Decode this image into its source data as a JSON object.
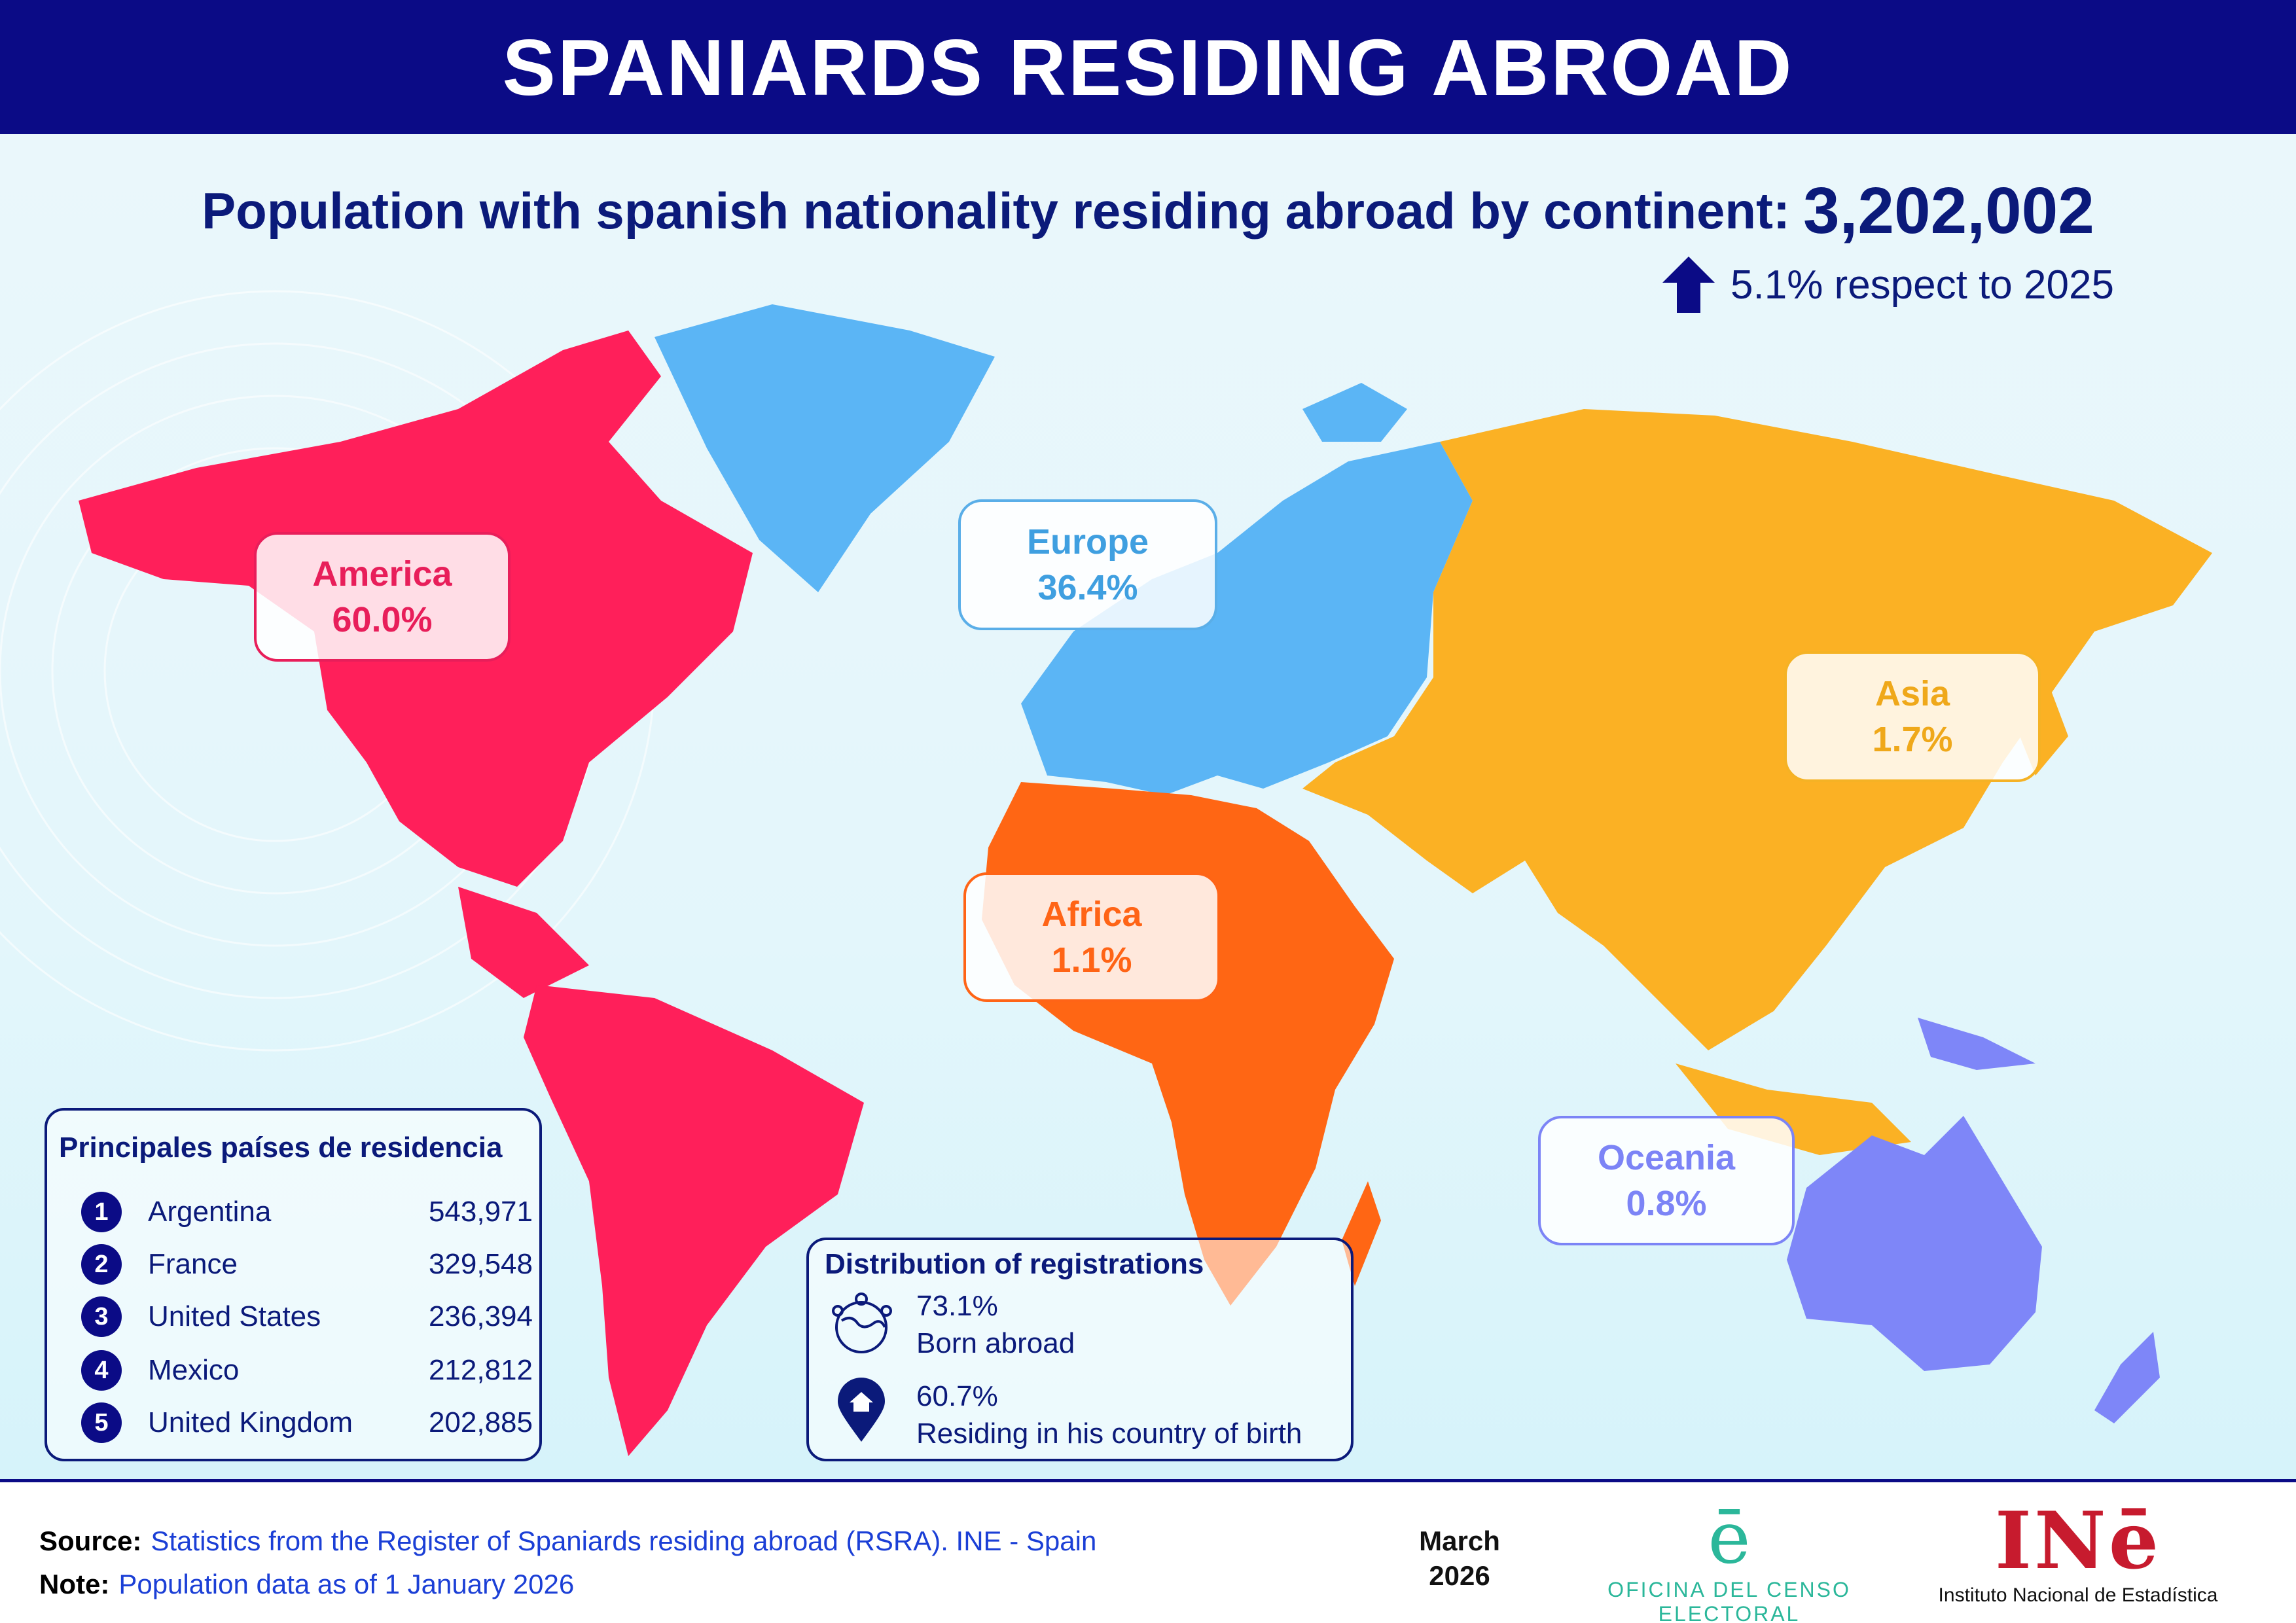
{
  "header": {
    "title": "SPANIARDS RESIDING ABROAD"
  },
  "summary": {
    "subtitle": "Population with spanish nationality residing abroad by continent:",
    "total": "3,202,002",
    "variation": "5.1% respect to 2025",
    "variation_direction": "up"
  },
  "continents": [
    {
      "name": "America",
      "share": "60.0%",
      "color": "#ff1f5a"
    },
    {
      "name": "Europe",
      "share": "36.4%",
      "color": "#5bb5f5"
    },
    {
      "name": "Asia",
      "share": "1.7%",
      "color": "#fbb124"
    },
    {
      "name": "Africa",
      "share": "1.1%",
      "color": "#ff6614"
    },
    {
      "name": "Oceania",
      "share": "0.8%",
      "color": "#7e86f8"
    }
  ],
  "ranking": {
    "title": "Principales países de residencia",
    "items": [
      {
        "rank": "1",
        "country": "Argentina",
        "value": "543,971"
      },
      {
        "rank": "2",
        "country": "France",
        "value": "329,548"
      },
      {
        "rank": "3",
        "country": "United States",
        "value": "236,394"
      },
      {
        "rank": "4",
        "country": "Mexico",
        "value": "212,812"
      },
      {
        "rank": "5",
        "country": "United Kingdom",
        "value": "202,885"
      }
    ]
  },
  "distribution": {
    "title": "Distribution of registrations",
    "items": [
      {
        "value": "73.1%",
        "label": "Born abroad",
        "icon": "globe-people-icon"
      },
      {
        "value": "60.7%",
        "label": "Residing in his country of birth",
        "icon": "home-pin-icon"
      }
    ]
  },
  "footer": {
    "source_label": "Source:",
    "source_value": "Statistics from the Register of Spaniards residing abroad (RSRA). INE - Spain",
    "note_label": "Note:",
    "note_value": "Population data as of 1 January 2026",
    "date_month": "March",
    "date_year": "2026",
    "oce_mark": "ē",
    "oce_name": "OFICINA DEL CENSO ELECTORAL",
    "ine_mark": "INē",
    "ine_name": "Instituto Nacional de Estadística"
  }
}
